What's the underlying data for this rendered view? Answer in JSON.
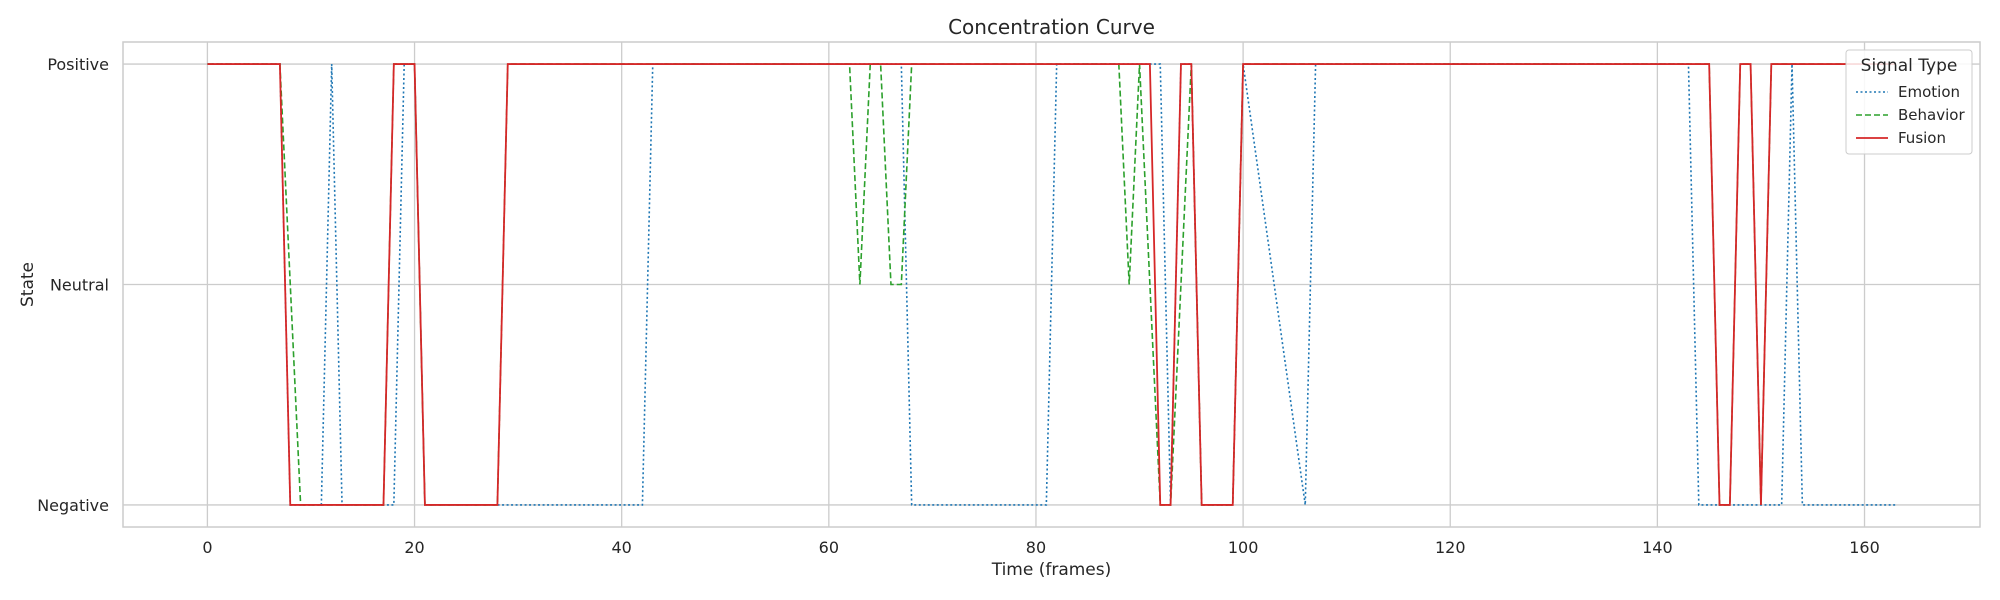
{
  "chart_data": {
    "type": "line",
    "title": "Concentration Curve",
    "xlabel": "Time (frames)",
    "ylabel": "State",
    "xlim": [
      -8.15,
      171.15
    ],
    "ylim": [
      -0.1,
      2.1
    ],
    "xticks": [
      0,
      20,
      40,
      60,
      80,
      100,
      120,
      140,
      160
    ],
    "yticks": [
      {
        "value": 0,
        "label": "Negative"
      },
      {
        "value": 1,
        "label": "Neutral"
      },
      {
        "value": 2,
        "label": "Positive"
      }
    ],
    "grid": true,
    "legend": {
      "title": "Signal Type",
      "placement": "top-right"
    },
    "series": [
      {
        "name": "Emotion",
        "color": "#1f77b4",
        "style": "dotted",
        "points": [
          [
            0,
            2
          ],
          [
            7,
            2
          ],
          [
            8,
            0
          ],
          [
            11,
            0
          ],
          [
            12,
            2
          ],
          [
            13,
            0
          ],
          [
            18,
            0
          ],
          [
            19,
            2
          ],
          [
            20,
            2
          ],
          [
            21,
            0
          ],
          [
            42,
            0
          ],
          [
            43,
            2
          ],
          [
            67,
            2
          ],
          [
            68,
            0
          ],
          [
            81,
            0
          ],
          [
            82,
            2
          ],
          [
            92,
            2
          ],
          [
            93,
            0
          ],
          [
            94,
            2
          ],
          [
            95,
            2
          ],
          [
            96,
            0
          ],
          [
            99,
            0
          ],
          [
            100,
            2
          ],
          [
            106,
            0
          ],
          [
            107,
            2
          ],
          [
            143,
            2
          ],
          [
            144,
            0
          ],
          [
            152,
            0
          ],
          [
            153,
            2
          ],
          [
            154,
            0
          ],
          [
            163,
            0
          ]
        ]
      },
      {
        "name": "Behavior",
        "color": "#2ca02c",
        "style": "dashed",
        "points": [
          [
            0,
            2
          ],
          [
            7,
            2
          ],
          [
            9,
            0
          ],
          [
            17,
            0
          ],
          [
            18,
            2
          ],
          [
            20,
            2
          ],
          [
            21,
            0
          ],
          [
            28,
            0
          ],
          [
            29,
            2
          ],
          [
            62,
            2
          ],
          [
            63,
            1
          ],
          [
            64,
            2
          ],
          [
            65,
            2
          ],
          [
            66,
            1
          ],
          [
            67,
            1
          ],
          [
            68,
            2
          ],
          [
            88,
            2
          ],
          [
            89,
            1
          ],
          [
            90,
            2
          ],
          [
            92,
            0
          ],
          [
            93,
            0
          ],
          [
            95,
            2
          ],
          [
            96,
            0
          ],
          [
            99,
            0
          ],
          [
            100,
            2
          ],
          [
            145,
            2
          ],
          [
            146,
            0
          ],
          [
            147,
            0
          ],
          [
            148,
            2
          ],
          [
            149,
            2
          ],
          [
            150,
            0
          ],
          [
            151,
            2
          ],
          [
            163,
            2
          ]
        ]
      },
      {
        "name": "Fusion",
        "color": "#d62728",
        "style": "solid",
        "points": [
          [
            0,
            2
          ],
          [
            7,
            2
          ],
          [
            8,
            0
          ],
          [
            17,
            0
          ],
          [
            18,
            2
          ],
          [
            20,
            2
          ],
          [
            21,
            0
          ],
          [
            28,
            0
          ],
          [
            29,
            2
          ],
          [
            91,
            2
          ],
          [
            92,
            0
          ],
          [
            93,
            0
          ],
          [
            94,
            2
          ],
          [
            95,
            2
          ],
          [
            96,
            0
          ],
          [
            99,
            0
          ],
          [
            100,
            2
          ],
          [
            145,
            2
          ],
          [
            146,
            0
          ],
          [
            147,
            0
          ],
          [
            148,
            2
          ],
          [
            149,
            2
          ],
          [
            150,
            0
          ],
          [
            151,
            2
          ],
          [
            163,
            2
          ]
        ]
      }
    ]
  }
}
